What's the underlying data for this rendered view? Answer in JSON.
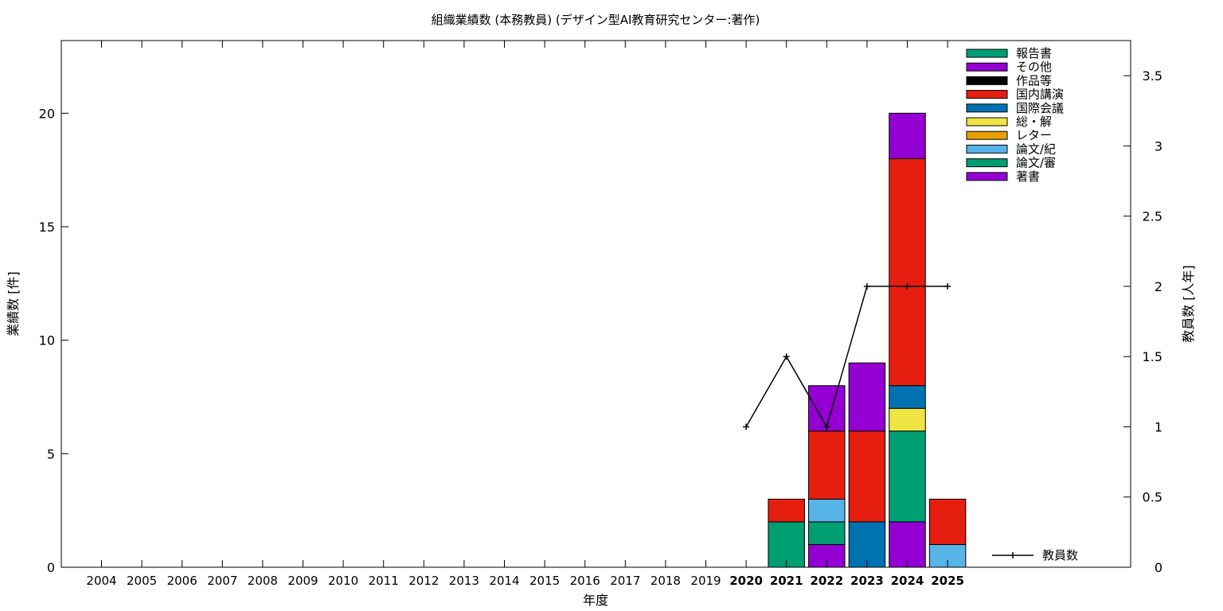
{
  "chart_data": {
    "type": "bar",
    "stacked": true,
    "title": "組織業績数 (本務教員) (デザイン型AI教育研究センター:著作)",
    "xlabel": "年度",
    "ylabel": "業績数 [件]",
    "y2label": "教員数 [人年]",
    "ylim": [
      0,
      23.2
    ],
    "y2lim": [
      0,
      3.75
    ],
    "yticks": [
      "0",
      "5",
      "10",
      "15",
      "20"
    ],
    "y2ticks": [
      "0",
      "0.5",
      "1",
      "1.5",
      "2",
      "2.5",
      "3",
      "3.5"
    ],
    "grid": false,
    "legend_position": "top-right",
    "categories": [
      "2004",
      "2005",
      "2006",
      "2007",
      "2008",
      "2009",
      "2010",
      "2011",
      "2012",
      "2013",
      "2014",
      "2015",
      "2016",
      "2017",
      "2018",
      "2019",
      "2020",
      "2021",
      "2022",
      "2023",
      "2024",
      "2025"
    ],
    "highlighted_categories": [
      "2020",
      "2021",
      "2022",
      "2023",
      "2024",
      "2025"
    ],
    "series": [
      {
        "name": "著書",
        "color": "#9400d3",
        "values": [
          0,
          0,
          0,
          0,
          0,
          0,
          0,
          0,
          0,
          0,
          0,
          0,
          0,
          0,
          0,
          0,
          0,
          0,
          1,
          0,
          2,
          0
        ]
      },
      {
        "name": "論文/審",
        "color": "#009e73",
        "values": [
          0,
          0,
          0,
          0,
          0,
          0,
          0,
          0,
          0,
          0,
          0,
          0,
          0,
          0,
          0,
          0,
          0,
          2,
          1,
          0,
          4,
          0
        ]
      },
      {
        "name": "論文/紀",
        "color": "#56b4e9",
        "values": [
          0,
          0,
          0,
          0,
          0,
          0,
          0,
          0,
          0,
          0,
          0,
          0,
          0,
          0,
          0,
          0,
          0,
          0,
          1,
          0,
          0,
          1
        ]
      },
      {
        "name": "レター",
        "color": "#e69f00",
        "values": [
          0,
          0,
          0,
          0,
          0,
          0,
          0,
          0,
          0,
          0,
          0,
          0,
          0,
          0,
          0,
          0,
          0,
          0,
          0,
          0,
          0,
          0
        ]
      },
      {
        "name": "総・解",
        "color": "#f0e442",
        "values": [
          0,
          0,
          0,
          0,
          0,
          0,
          0,
          0,
          0,
          0,
          0,
          0,
          0,
          0,
          0,
          0,
          0,
          0,
          0,
          0,
          1,
          0
        ]
      },
      {
        "name": "国際会議",
        "color": "#0072b2",
        "values": [
          0,
          0,
          0,
          0,
          0,
          0,
          0,
          0,
          0,
          0,
          0,
          0,
          0,
          0,
          0,
          0,
          0,
          0,
          0,
          2,
          1,
          0
        ]
      },
      {
        "name": "国内講演",
        "color": "#e51e10",
        "values": [
          0,
          0,
          0,
          0,
          0,
          0,
          0,
          0,
          0,
          0,
          0,
          0,
          0,
          0,
          0,
          0,
          0,
          1,
          3,
          4,
          10,
          2
        ]
      },
      {
        "name": "作品等",
        "color": "#000000",
        "values": [
          0,
          0,
          0,
          0,
          0,
          0,
          0,
          0,
          0,
          0,
          0,
          0,
          0,
          0,
          0,
          0,
          0,
          0,
          0,
          0,
          0,
          0
        ]
      },
      {
        "name": "その他",
        "color": "#9400d3",
        "values": [
          0,
          0,
          0,
          0,
          0,
          0,
          0,
          0,
          0,
          0,
          0,
          0,
          0,
          0,
          0,
          0,
          0,
          0,
          2,
          3,
          2,
          0
        ]
      },
      {
        "name": "報告書",
        "color": "#009e73",
        "values": [
          0,
          0,
          0,
          0,
          0,
          0,
          0,
          0,
          0,
          0,
          0,
          0,
          0,
          0,
          0,
          0,
          0,
          0,
          0,
          0,
          0,
          0
        ]
      }
    ],
    "line_series": {
      "name": "教員数",
      "axis": "y2",
      "color": "#000000",
      "x": [
        "2020",
        "2021",
        "2022",
        "2023",
        "2024",
        "2025"
      ],
      "values": [
        1,
        1.5,
        1,
        2,
        2,
        2
      ]
    }
  }
}
